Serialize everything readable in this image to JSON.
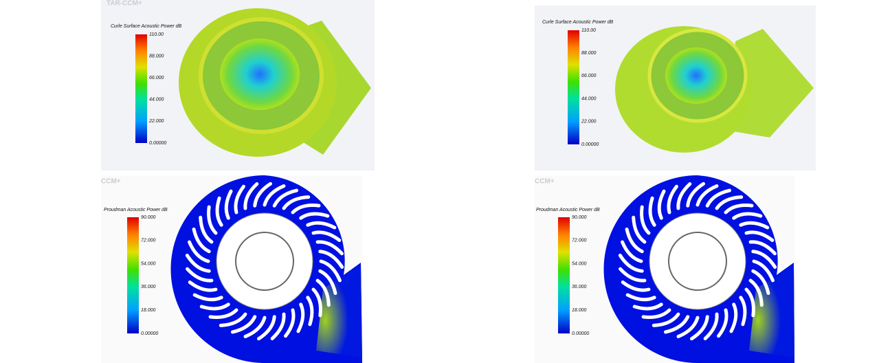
{
  "panels": [
    {
      "logo": "TAR-CCM+",
      "title": "Curle Surface Acoustic Power dB",
      "ticks": [
        "110.00",
        "88.000",
        "66.000",
        "44.000",
        "22.000",
        "0.00000"
      ]
    },
    {
      "title": "Curle Surface Acoustic Power dB",
      "ticks": [
        "110.00",
        "88.000",
        "66.000",
        "44.000",
        "22.000",
        "0.00000"
      ]
    },
    {
      "logo": "CCM+",
      "title": "Proudman Acoustic Power dB",
      "ticks": [
        "90.000",
        "72.000",
        "54.000",
        "36.000",
        "18.000",
        "0.00000"
      ]
    },
    {
      "logo": "CCM+",
      "title": "Proudman Acoustic Power dB",
      "ticks": [
        "90.000",
        "72.000",
        "54.000",
        "36.000",
        "18.000",
        "0.00000"
      ]
    }
  ]
}
